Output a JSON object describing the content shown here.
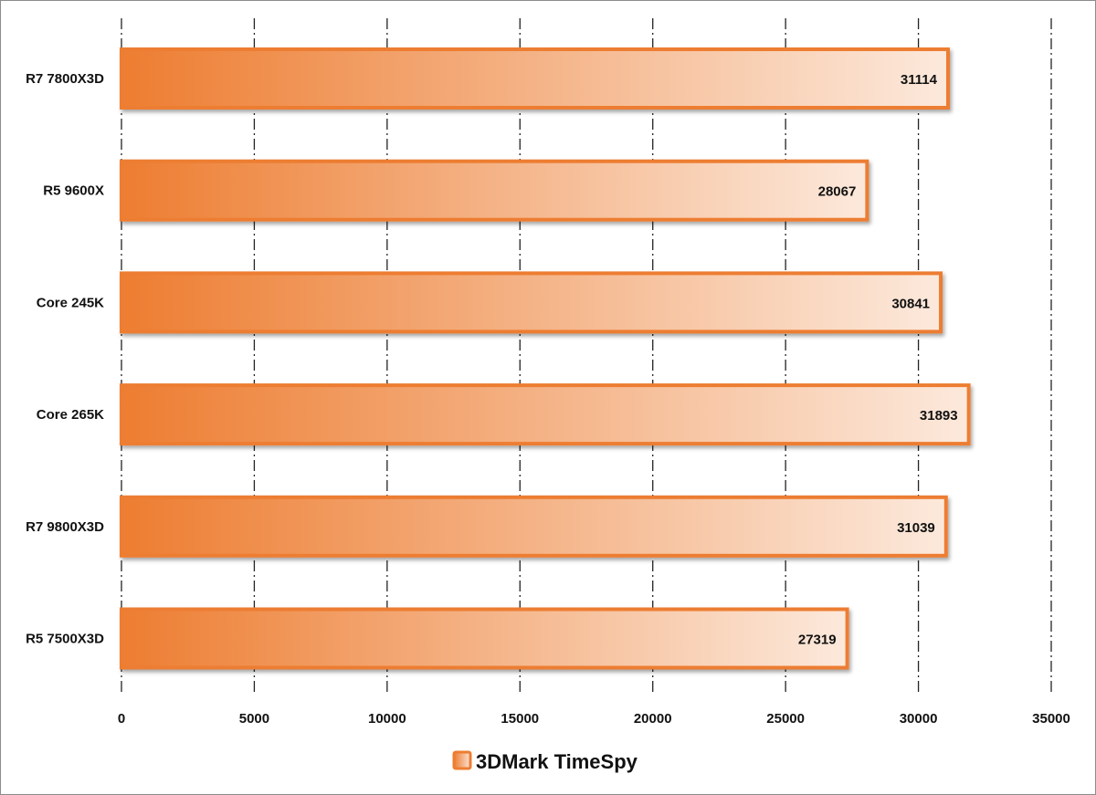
{
  "chart_data": {
    "type": "bar",
    "orientation": "horizontal",
    "categories": [
      "R7 7800X3D",
      "R5 9600X",
      "Core 245K",
      "Core 265K",
      "R7 9800X3D",
      "R5 7500X3D"
    ],
    "series": [
      {
        "name": "3DMark TimeSpy",
        "values": [
          31114,
          28067,
          30841,
          31893,
          31039,
          27319
        ],
        "color": "#ED7D31"
      }
    ],
    "xlim": [
      0,
      35000
    ],
    "xticks": [
      0,
      5000,
      10000,
      15000,
      20000,
      25000,
      30000,
      35000
    ],
    "grid": "vertical dash-dot",
    "legend": "bottom",
    "data_labels": true
  }
}
